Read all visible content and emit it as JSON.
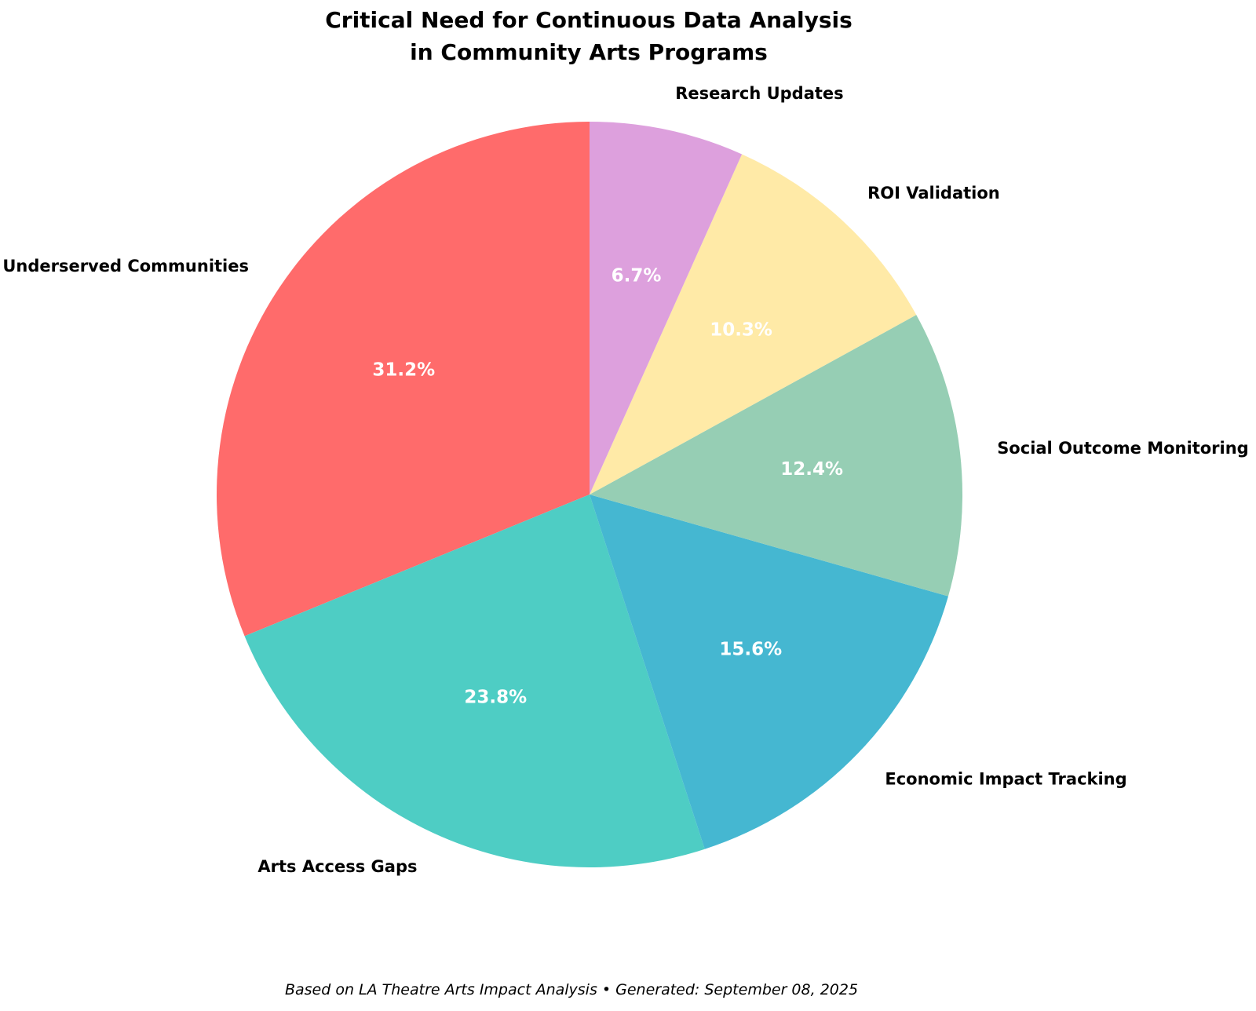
{
  "figure": {
    "title": "Critical Need for Continuous Data Analysis\nin Community Arts Programs",
    "footer": "Based on LA Theatre Arts Impact Analysis • Generated: September 08, 2025"
  },
  "chart_data": {
    "type": "pie",
    "title": "Critical Need for Continuous Data Analysis in Community Arts Programs",
    "footer": "Based on LA Theatre Arts Impact Analysis • Generated: September 08, 2025",
    "slices": [
      {
        "label": "Underserved Communities",
        "value": 31.2,
        "pct_label": "31.2%",
        "color": "#FF6B6B"
      },
      {
        "label": "Arts Access Gaps",
        "value": 23.8,
        "pct_label": "23.8%",
        "color": "#4ECDC4"
      },
      {
        "label": "Economic Impact Tracking",
        "value": 15.6,
        "pct_label": "15.6%",
        "color": "#45B7D1"
      },
      {
        "label": "Social Outcome Monitoring",
        "value": 12.4,
        "pct_label": "12.4%",
        "color": "#96CEB4"
      },
      {
        "label": "ROI Validation",
        "value": 10.3,
        "pct_label": "10.3%",
        "color": "#FFEAA7"
      },
      {
        "label": "Research Updates",
        "value": 6.7,
        "pct_label": "6.7%",
        "color": "#DDA0DD"
      }
    ],
    "start_angle_deg": 90,
    "direction": "counterclockwise",
    "pct_distance": 0.6,
    "label_distance": 1.1,
    "pct_label_color": "#FFFFFF",
    "label_color": "#000000",
    "legend": "none",
    "grid": "off"
  }
}
